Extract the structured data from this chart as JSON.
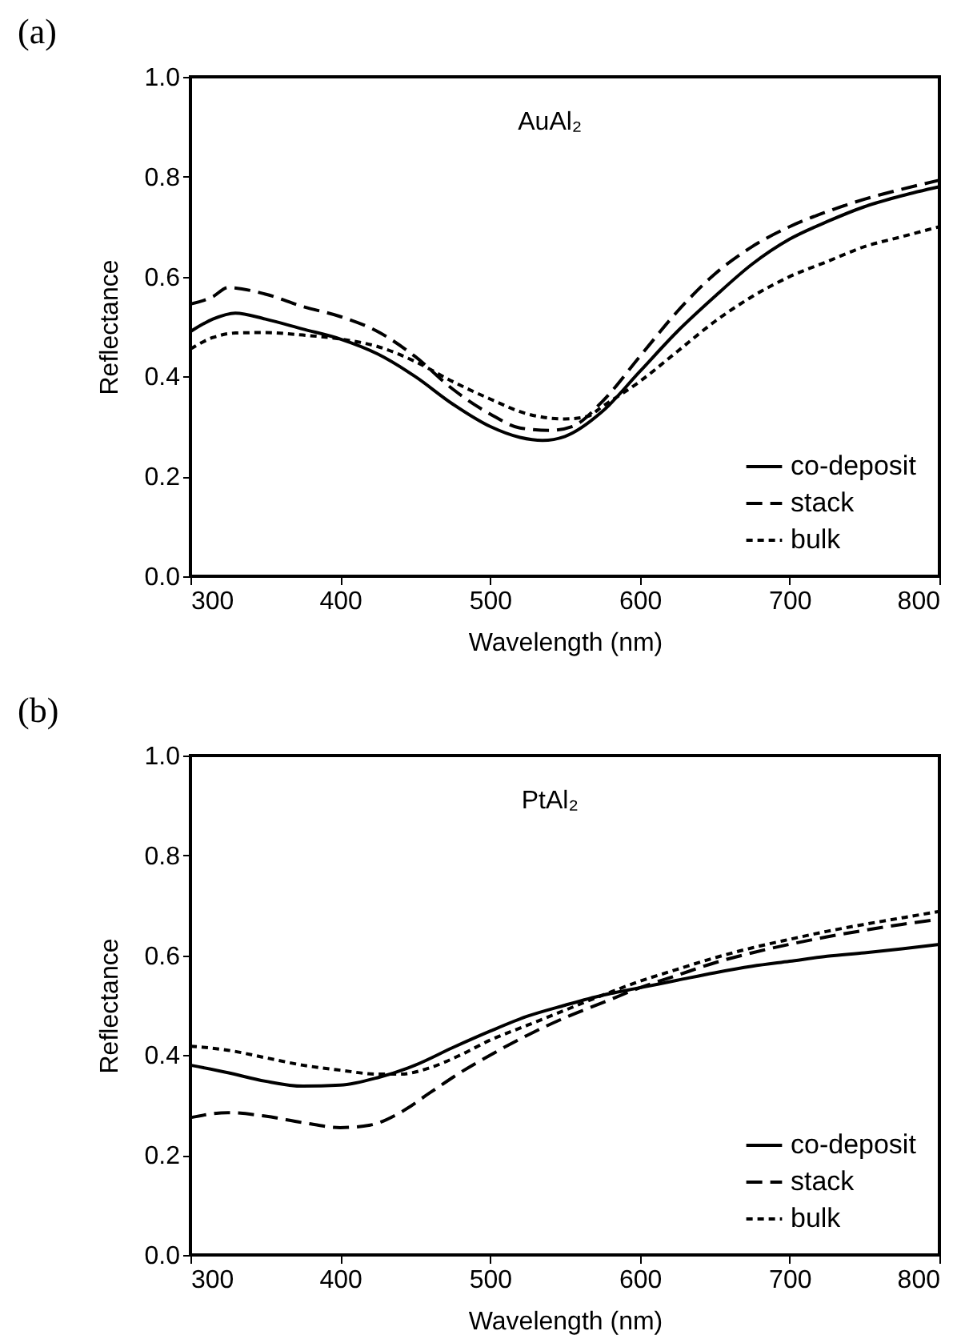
{
  "chart_data": [
    {
      "type": "line",
      "title": "(a)",
      "xlabel": "Wavelength (nm)",
      "ylabel": "Reflectance",
      "annotations": [
        "AuAl₂"
      ],
      "legend": "bottom right",
      "xlim": [
        300,
        800
      ],
      "xticks": [
        300,
        400,
        500,
        600,
        700,
        800
      ],
      "ylim": [
        0,
        1
      ],
      "yticks": [
        {
          "value": 0,
          "label": "0.0"
        },
        {
          "value": 0.2,
          "label": "0.2"
        },
        {
          "value": 0.4,
          "label": "0.4"
        },
        {
          "value": 0.6,
          "label": "0.6"
        },
        {
          "value": 0.8,
          "label": "0.8"
        },
        {
          "value": 1,
          "label": "1.0"
        }
      ],
      "series": [
        {
          "name": "co-deposit",
          "color": "#000000",
          "line_style": "solid",
          "x": [
            300,
            315,
            330,
            350,
            375,
            400,
            425,
            450,
            475,
            500,
            520,
            535,
            550,
            575,
            600,
            625,
            650,
            675,
            700,
            725,
            750,
            775,
            800
          ],
          "values": [
            0.49,
            0.515,
            0.527,
            0.515,
            0.495,
            0.475,
            0.445,
            0.4,
            0.345,
            0.3,
            0.278,
            0.272,
            0.28,
            0.33,
            0.41,
            0.49,
            0.56,
            0.625,
            0.675,
            0.71,
            0.74,
            0.762,
            0.78
          ]
        },
        {
          "name": "stack",
          "color": "#000000",
          "line_style": "dashed",
          "x": [
            300,
            315,
            325,
            350,
            375,
            400,
            425,
            450,
            475,
            500,
            520,
            540,
            555,
            575,
            600,
            625,
            650,
            675,
            700,
            725,
            750,
            775,
            800
          ],
          "values": [
            0.545,
            0.56,
            0.578,
            0.565,
            0.54,
            0.52,
            0.49,
            0.44,
            0.375,
            0.325,
            0.297,
            0.292,
            0.3,
            0.35,
            0.44,
            0.53,
            0.605,
            0.66,
            0.7,
            0.73,
            0.755,
            0.775,
            0.793
          ]
        },
        {
          "name": "bulk",
          "color": "#000000",
          "line_style": "dotted",
          "x": [
            300,
            315,
            330,
            350,
            375,
            400,
            425,
            450,
            475,
            500,
            525,
            550,
            565,
            575,
            600,
            625,
            650,
            675,
            700,
            725,
            750,
            775,
            800
          ],
          "values": [
            0.455,
            0.478,
            0.487,
            0.488,
            0.483,
            0.475,
            0.46,
            0.43,
            0.39,
            0.355,
            0.325,
            0.315,
            0.32,
            0.34,
            0.39,
            0.45,
            0.51,
            0.56,
            0.6,
            0.63,
            0.66,
            0.68,
            0.7
          ]
        }
      ]
    },
    {
      "type": "line",
      "title": "(b)",
      "xlabel": "Wavelength (nm)",
      "ylabel": "Reflectance",
      "annotations": [
        "PtAl₂"
      ],
      "legend": "bottom right",
      "xlim": [
        300,
        800
      ],
      "xticks": [
        300,
        400,
        500,
        600,
        700,
        800
      ],
      "ylim": [
        0,
        1
      ],
      "yticks": [
        {
          "value": 0,
          "label": "0.0"
        },
        {
          "value": 0.2,
          "label": "0.2"
        },
        {
          "value": 0.4,
          "label": "0.4"
        },
        {
          "value": 0.6,
          "label": "0.6"
        },
        {
          "value": 0.8,
          "label": "0.8"
        },
        {
          "value": 1,
          "label": "1.0"
        }
      ],
      "series": [
        {
          "name": "co-deposit",
          "color": "#000000",
          "line_style": "solid",
          "x": [
            300,
            325,
            350,
            375,
            400,
            425,
            450,
            475,
            500,
            525,
            550,
            575,
            600,
            625,
            650,
            675,
            700,
            725,
            750,
            775,
            800
          ],
          "values": [
            0.38,
            0.365,
            0.348,
            0.338,
            0.34,
            0.355,
            0.38,
            0.415,
            0.448,
            0.478,
            0.5,
            0.52,
            0.535,
            0.55,
            0.565,
            0.578,
            0.588,
            0.598,
            0.605,
            0.613,
            0.622
          ]
        },
        {
          "name": "stack",
          "color": "#000000",
          "line_style": "dashed",
          "x": [
            300,
            325,
            350,
            375,
            400,
            420,
            440,
            460,
            480,
            500,
            525,
            550,
            575,
            600,
            625,
            650,
            675,
            700,
            725,
            750,
            775,
            800
          ],
          "values": [
            0.275,
            0.285,
            0.278,
            0.265,
            0.255,
            0.26,
            0.285,
            0.325,
            0.365,
            0.4,
            0.44,
            0.475,
            0.505,
            0.535,
            0.56,
            0.585,
            0.605,
            0.622,
            0.637,
            0.65,
            0.662,
            0.672
          ]
        },
        {
          "name": "bulk",
          "color": "#000000",
          "line_style": "dotted",
          "x": [
            300,
            325,
            350,
            375,
            400,
            425,
            440,
            460,
            480,
            500,
            525,
            550,
            575,
            600,
            625,
            650,
            675,
            700,
            725,
            750,
            775,
            800
          ],
          "values": [
            0.418,
            0.41,
            0.395,
            0.38,
            0.37,
            0.362,
            0.362,
            0.375,
            0.4,
            0.43,
            0.46,
            0.49,
            0.52,
            0.548,
            0.572,
            0.595,
            0.615,
            0.632,
            0.648,
            0.662,
            0.675,
            0.688
          ]
        }
      ]
    }
  ]
}
